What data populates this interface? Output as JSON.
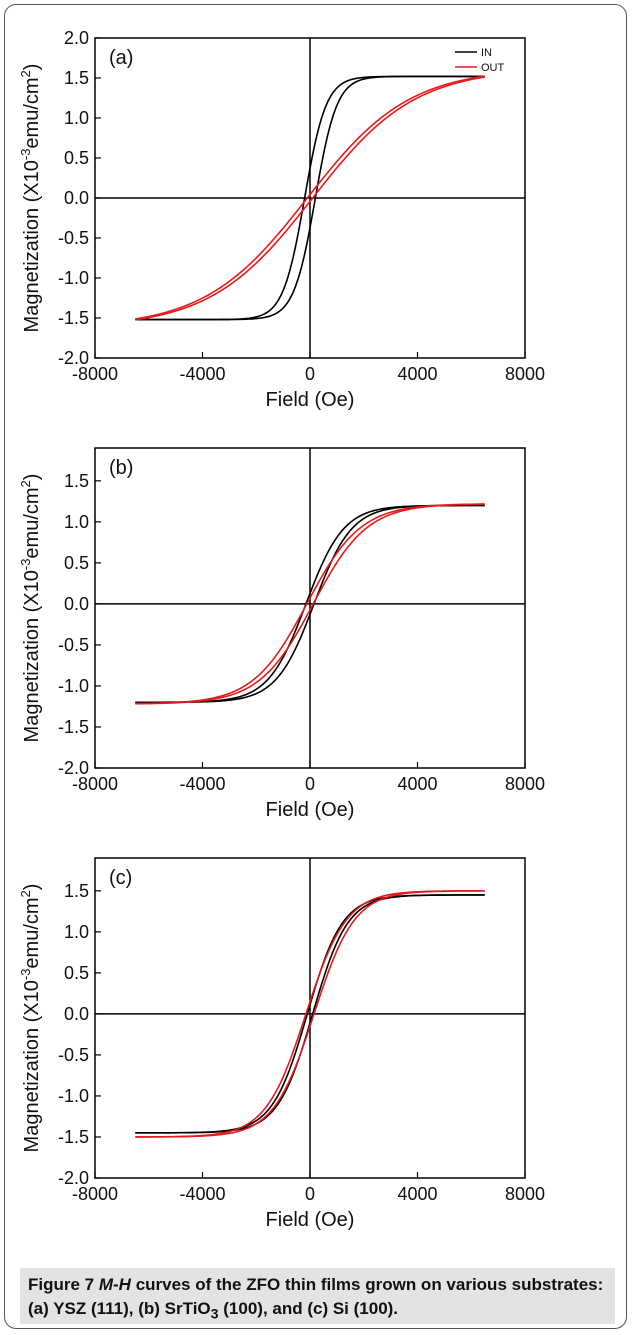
{
  "caption": {
    "label": "Figure 7",
    "mh": "M-H",
    "text_1": " curves of the ZFO thin films grown on various substrates: (a) YSZ (111), (b) SrTiO",
    "sub": "3",
    "text_2": " (100), and (c) Si (100)."
  },
  "colors": {
    "IN": "#000000",
    "OUT": "#e8191b",
    "axis": "#000000"
  },
  "chart_data": [
    {
      "type": "line",
      "panel": "(a)",
      "xlabel": "Field (Oe)",
      "ylabel": "Magnetization (X10^-3 emu/cm^2)",
      "xlim": [
        -8000,
        8000
      ],
      "ylim": [
        -2.0,
        2.0
      ],
      "xticks": [
        "-8000",
        "-4000",
        "0",
        "4000",
        "8000"
      ],
      "yticks": [
        "-2.0",
        "-1.5",
        "-1.0",
        "-0.5",
        "0.0",
        "0.5",
        "1.0",
        "1.5",
        "2.0"
      ],
      "legend": [
        "IN",
        "OUT"
      ],
      "legend_position": "top-right",
      "series": [
        {
          "name": "IN",
          "Ms": 1.52,
          "Hc": 200,
          "w": 800,
          "gap": 0.02
        },
        {
          "name": "OUT",
          "Ms": 1.62,
          "Hc": 100,
          "w": 3800,
          "gap": 0.03
        }
      ]
    },
    {
      "type": "line",
      "panel": "(b)",
      "xlabel": "Field (Oe)",
      "ylabel": "Magnetization (X10^-3 emu/cm^2)",
      "xlim": [
        -8000,
        8000
      ],
      "ylim": [
        -2.0,
        1.9
      ],
      "xticks": [
        "-8000",
        "-4000",
        "0",
        "4000",
        "8000"
      ],
      "yticks": [
        "-2.0",
        "-1.5",
        "-1.0",
        "-0.5",
        "0.0",
        "0.5",
        "1.0",
        "1.5"
      ],
      "series": [
        {
          "name": "IN",
          "Ms": 1.2,
          "Hc": 150,
          "w": 1400,
          "gap": 0.02
        },
        {
          "name": "OUT",
          "Ms": 1.22,
          "Hc": 120,
          "w": 2000,
          "gap": 0.02
        }
      ]
    },
    {
      "type": "line",
      "panel": "(c)",
      "xlabel": "Field (Oe)",
      "ylabel": "Magnetization (X10^-3 emu/cm^2)",
      "xlim": [
        -8000,
        8000
      ],
      "ylim": [
        -2.0,
        1.9
      ],
      "xticks": [
        "-8000",
        "-4000",
        "0",
        "4000",
        "8000"
      ],
      "yticks": [
        "-2.0",
        "-1.5",
        "-1.0",
        "-0.5",
        "0.0",
        "0.5",
        "1.0",
        "1.5"
      ],
      "series": [
        {
          "name": "IN",
          "Ms": 1.45,
          "Hc": 100,
          "w": 1300,
          "gap": 0.02
        },
        {
          "name": "OUT",
          "Ms": 1.5,
          "Hc": 150,
          "w": 1500,
          "gap": 0.02
        }
      ]
    }
  ]
}
